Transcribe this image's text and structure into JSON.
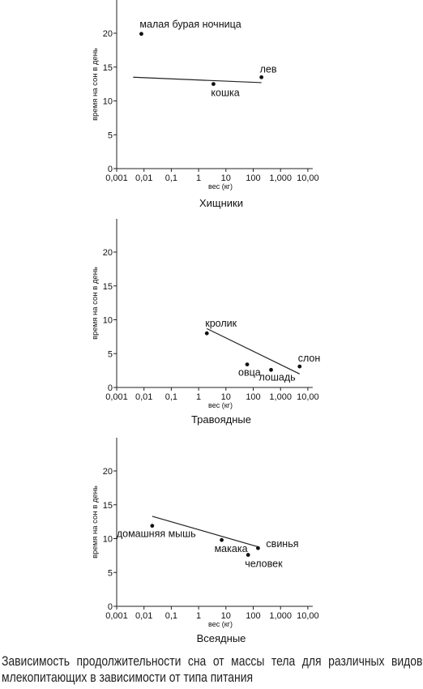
{
  "chart_data": [
    {
      "type": "scatter",
      "title": "Хищники",
      "xlabel": "вес (кг)",
      "ylabel": "время на сон в день",
      "xscale": "log",
      "xlim": [
        0.001,
        10000
      ],
      "ylim": [
        0,
        25
      ],
      "xticks": [
        "0,001",
        "0,01",
        "0,1",
        "1",
        "10",
        "100",
        "1,000",
        "10,00"
      ],
      "yticks": [
        "0",
        "5",
        "10",
        "15",
        "20"
      ],
      "points": [
        {
          "label": "малая бурая ночница",
          "x": 0.008,
          "y": 19.9
        },
        {
          "label": "кошка",
          "x": 3.5,
          "y": 12.5
        },
        {
          "label": "лев",
          "x": 200,
          "y": 13.5
        }
      ],
      "trendline": {
        "x": [
          0.004,
          200
        ],
        "y": [
          13.5,
          12.7
        ]
      }
    },
    {
      "type": "scatter",
      "title": "Травоядные",
      "xlabel": "вес (кг)",
      "ylabel": "время на сон в день",
      "xscale": "log",
      "xlim": [
        0.001,
        10000
      ],
      "ylim": [
        0,
        25
      ],
      "xticks": [
        "0,001",
        "0,01",
        "0,1",
        "1",
        "10",
        "100",
        "1,000",
        "10,00"
      ],
      "yticks": [
        "0",
        "5",
        "10",
        "15",
        "20"
      ],
      "points": [
        {
          "label": "кролик",
          "x": 2,
          "y": 8
        },
        {
          "label": "овца",
          "x": 60,
          "y": 3.4
        },
        {
          "label": "лошадь",
          "x": 450,
          "y": 2.6
        },
        {
          "label": "слон",
          "x": 5000,
          "y": 3.1
        }
      ],
      "trendline": {
        "x": [
          2,
          5000
        ],
        "y": [
          8.7,
          2.0
        ]
      }
    },
    {
      "type": "scatter",
      "title": "Всеядные",
      "xlabel": "вес (кг)",
      "ylabel": "время на сон в день",
      "xscale": "log",
      "xlim": [
        0.001,
        10000
      ],
      "ylim": [
        0,
        25
      ],
      "xticks": [
        "0,001",
        "0,01",
        "0,1",
        "1",
        "10",
        "100",
        "1,000",
        "10,00"
      ],
      "yticks": [
        "0",
        "5",
        "10",
        "15",
        "20"
      ],
      "points": [
        {
          "label": "домашняя мышь",
          "x": 0.02,
          "y": 11.9
        },
        {
          "label": "макака",
          "x": 7,
          "y": 9.8
        },
        {
          "label": "человек",
          "x": 65,
          "y": 7.6
        },
        {
          "label": "свинья",
          "x": 150,
          "y": 8.6
        }
      ],
      "trendline": {
        "x": [
          0.02,
          150
        ],
        "y": [
          13.3,
          8.8
        ]
      }
    }
  ],
  "caption": {
    "line1": "Зависимость продолжительности сна от массы тела для различных видов",
    "line2": "млекопитающих в зависимости от типа питания"
  }
}
